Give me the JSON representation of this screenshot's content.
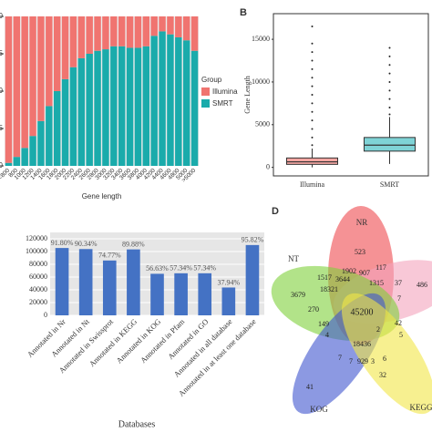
{
  "chart_data": [
    {
      "type": "bar",
      "stacked": true,
      "x_label": "Gene length",
      "legend_title": "Group",
      "legend": "right",
      "categories": [
        "<800",
        "800",
        "1000",
        "1200",
        "1400",
        "1600",
        "1800",
        "2000",
        "2200",
        "2400",
        "2600",
        "2800",
        "3000",
        "3200",
        "3400",
        "3600",
        "3800",
        "4000",
        "4200",
        "4400",
        "4600",
        "4800",
        "5000",
        ">5000"
      ],
      "series": [
        {
          "name": "Illumina",
          "color": "#f07470",
          "values": [
            0.98,
            0.94,
            0.88,
            0.8,
            0.7,
            0.6,
            0.5,
            0.42,
            0.34,
            0.28,
            0.25,
            0.23,
            0.22,
            0.2,
            0.2,
            0.21,
            0.21,
            0.2,
            0.13,
            0.1,
            0.12,
            0.14,
            0.16,
            0.23
          ]
        },
        {
          "name": "SMRT",
          "color": "#1aabab",
          "values": [
            0.02,
            0.06,
            0.12,
            0.2,
            0.3,
            0.4,
            0.5,
            0.58,
            0.66,
            0.72,
            0.75,
            0.77,
            0.78,
            0.8,
            0.8,
            0.79,
            0.79,
            0.8,
            0.87,
            0.9,
            0.88,
            0.86,
            0.84,
            0.77
          ]
        }
      ],
      "ylim": [
        0,
        1
      ],
      "yticks": [
        {
          "value": 0,
          "label": "0.00"
        },
        {
          "value": 0.25,
          "label": "0.25"
        },
        {
          "value": 0.5,
          "label": "0.50"
        },
        {
          "value": 0.75,
          "label": "0.75"
        },
        {
          "value": 1,
          "label": "1.00"
        }
      ]
    },
    {
      "type": "box",
      "panel": "B",
      "y_label": "Gene Length",
      "categories": [
        "Illumina",
        "SMRT"
      ],
      "colors": [
        "#f4a6a2",
        "#7fd3d6"
      ],
      "boxes": [
        {
          "min": 0,
          "q1": 350,
          "median": 650,
          "q3": 1100,
          "max": 2200,
          "outliers": [
            2600,
            3500,
            4500,
            5500,
            6500,
            7500,
            8500,
            9500,
            10500,
            11500,
            12500,
            13500,
            14500,
            16500
          ]
        },
        {
          "min": 400,
          "q1": 1900,
          "median": 2600,
          "q3": 3500,
          "max": 5900,
          "outliers": [
            6200,
            7000,
            8000,
            9000,
            10000,
            11000,
            12000,
            13000,
            14000
          ]
        }
      ],
      "ylim": [
        -1000,
        18000
      ],
      "yticks": [
        0,
        5000,
        10000,
        15000
      ]
    },
    {
      "type": "bar",
      "x_label": "Databases",
      "color": "#4472c4",
      "grid": true,
      "categories": [
        "Annotated in Nr",
        "Annotated in Nt",
        "Annotated in Swissprot",
        "Annotated in KEGG",
        "Annotated in KOG",
        "Annotated in Pfam",
        "Annotated in GO",
        "Annotated in all database",
        "Annotated in at least one database"
      ],
      "values": [
        105570,
        103891,
        85986,
        103362,
        65125,
        65941,
        65941,
        43631,
        110193
      ],
      "annotations": [
        "91.80%",
        "90.34%",
        "74.77%",
        "89.88%",
        "56.63%",
        "57.34%",
        "57.34%",
        "37.94%",
        "95.82%"
      ],
      "ylim": [
        0,
        120000
      ],
      "yticks": [
        0,
        20000,
        40000,
        60000,
        80000,
        100000,
        120000
      ]
    },
    {
      "type": "venn",
      "panel": "D",
      "sets": [
        {
          "name": "NR",
          "color": "#ee4a4f"
        },
        {
          "color": "#f4a3bd"
        },
        {
          "name": "NT",
          "color": "#7fd13a"
        },
        {
          "name": "KOG",
          "color": "#3f55cf"
        },
        {
          "name": "KEGG",
          "color": "#f1e646"
        }
      ],
      "regions": [
        523,
        486,
        3679,
        41,
        32,
        45200,
        18321,
        18436,
        1902,
        907,
        117,
        1315,
        37,
        1517,
        3644,
        149,
        270,
        4,
        7,
        42,
        5,
        929,
        7,
        3,
        6,
        2,
        7
      ]
    }
  ]
}
